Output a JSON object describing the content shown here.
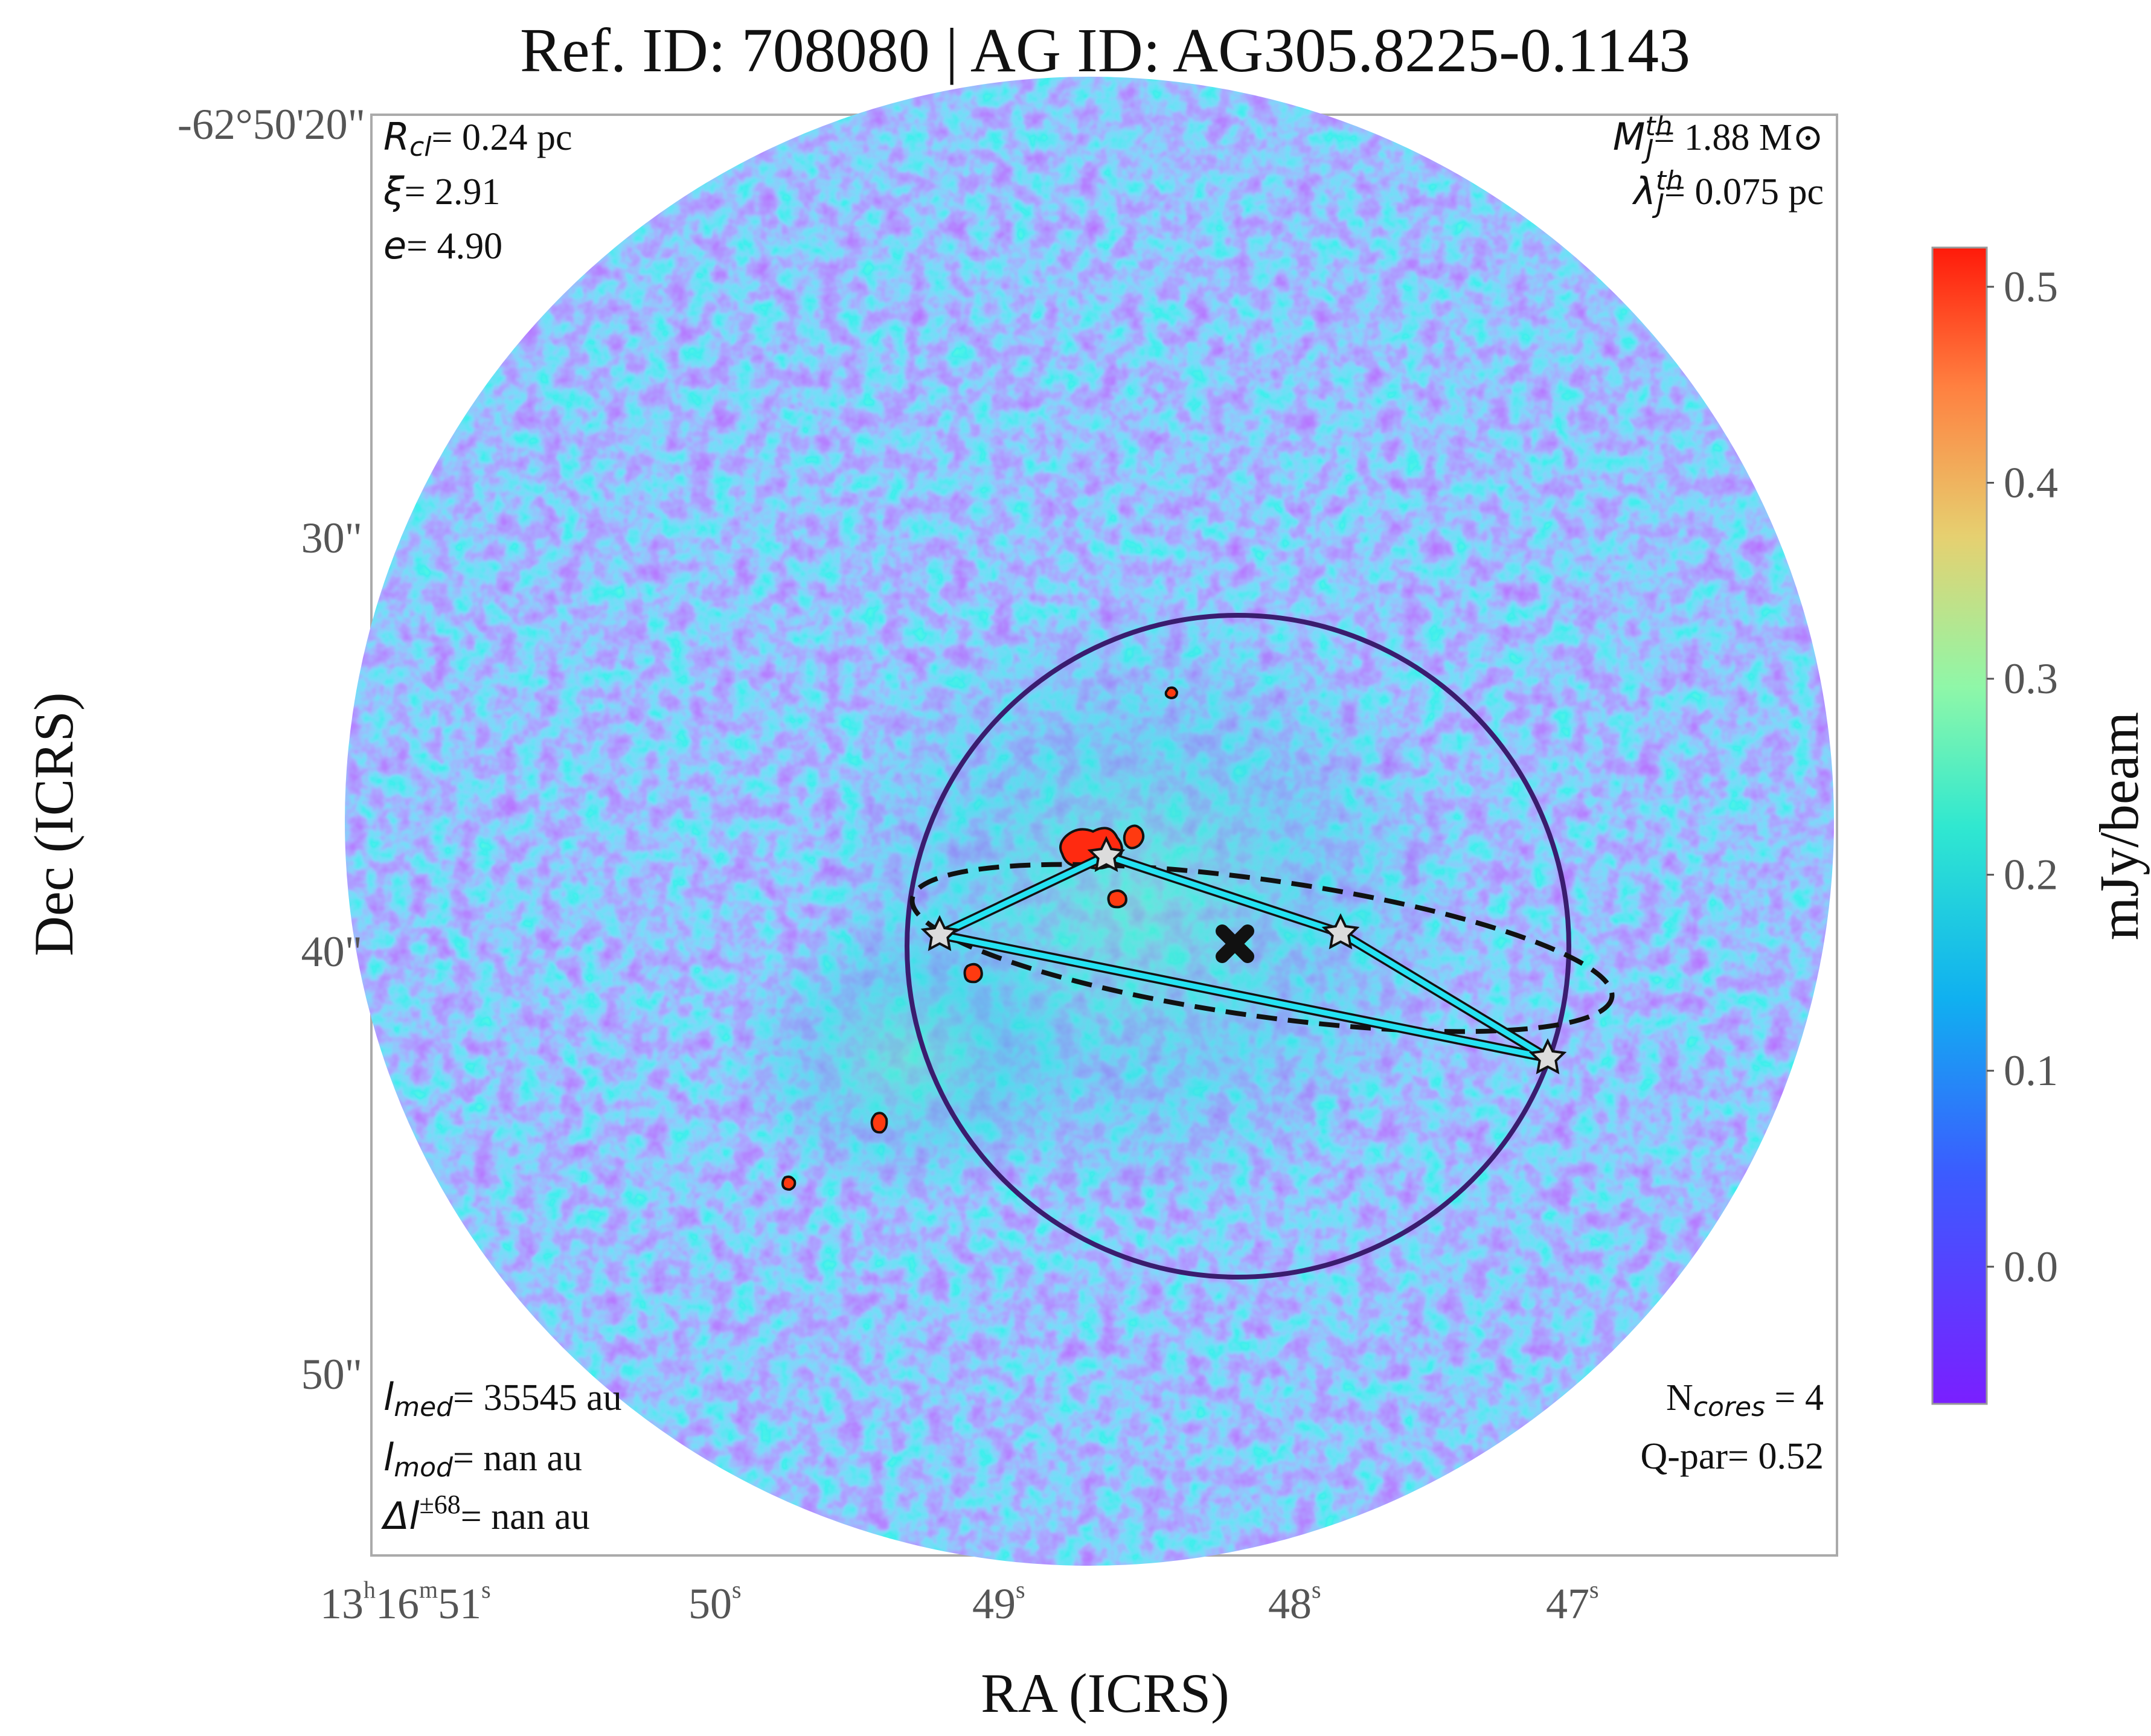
{
  "chart_data": {
    "type": "heatmap",
    "title": "Ref. ID: 708080 | AG ID: AG305.8225-0.1143",
    "xlabel": "RA (ICRS)",
    "ylabel": "Dec (ICRS)",
    "colorbar": {
      "label": "mJy/beam",
      "ticks": [
        "0.0",
        "0.1",
        "0.2",
        "0.3",
        "0.4",
        "0.5"
      ],
      "range": [
        -0.07,
        0.52
      ],
      "colormap": "rainbow"
    },
    "ra_ticks": [
      "13h16m51s",
      "50s",
      "49s",
      "48s",
      "47s"
    ],
    "dec_ticks": [
      "-62°50'20\"",
      "30\"",
      "40\"",
      "50\""
    ],
    "annotations_left": {
      "rcl": "= 0.24 pc",
      "xi": "= 2.91",
      "e": "= 4.90"
    },
    "annotations_right": {
      "mj": "= 1.88 M⊙",
      "lambda": "= 0.075 pc"
    },
    "annotations_bottom_left": {
      "lmed": "= 35545 au",
      "lmod": "= nan au",
      "dl": "= nan au"
    },
    "annotations_bottom_right": {
      "ncores": " = 4",
      "qpar": "Q-par= 0.52"
    },
    "cores": [
      "core-1",
      "core-2",
      "core-3",
      "core-4"
    ],
    "n_cores": 4,
    "colors": {
      "mst": "#25e2f2",
      "clump_circle": "#3a1c6e",
      "ellipse": "#111111",
      "star_fill": "#dcdcdc",
      "low": "#7a1fff",
      "high": "#ff1a0a"
    }
  }
}
